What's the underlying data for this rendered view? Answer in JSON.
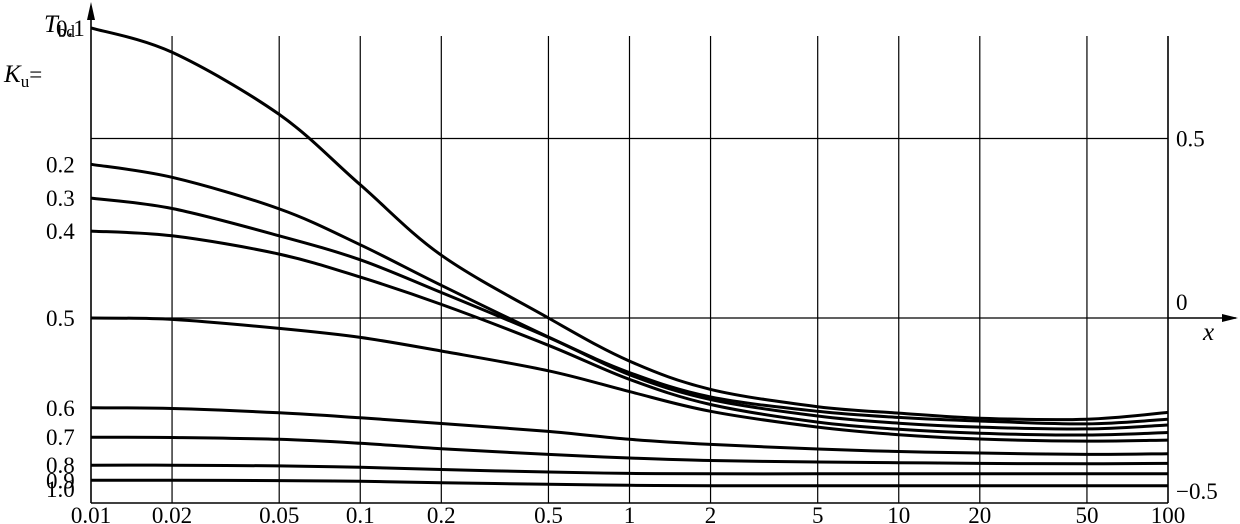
{
  "chart_data": {
    "type": "line",
    "title": "",
    "x_scale": "log",
    "xlim": [
      0.01,
      100
    ],
    "xlabel": "x",
    "ylabel": {
      "symbol": "T",
      "subscript": "bd"
    },
    "grid": true,
    "x_ticks": [
      {
        "value": 0.01,
        "label": "0.01"
      },
      {
        "value": 0.02,
        "label": "0.02"
      },
      {
        "value": 0.05,
        "label": "0.05"
      },
      {
        "value": 0.1,
        "label": "0.1"
      },
      {
        "value": 0.2,
        "label": "0.2"
      },
      {
        "value": 0.5,
        "label": "0.5"
      },
      {
        "value": 1,
        "label": "1"
      },
      {
        "value": 2,
        "label": "2"
      },
      {
        "value": 5,
        "label": "5"
      },
      {
        "value": 10,
        "label": "10"
      },
      {
        "value": 20,
        "label": "20"
      },
      {
        "value": 50,
        "label": "50"
      },
      {
        "value": 100,
        "label": "100"
      }
    ],
    "right_axis": {
      "ylim": [
        -0.5,
        0.5
      ],
      "ticks": [
        {
          "value": 0.5,
          "label": "0.5"
        },
        {
          "value": 0,
          "label": "0"
        },
        {
          "value": -0.5,
          "label": "−0.5"
        }
      ]
    },
    "left_labels": {
      "symbol": "K",
      "subscript": "u",
      "prefix": "=",
      "values": [
        "0.1",
        "0.2",
        "0.3",
        "0.4",
        "0.5",
        "0.6",
        "0.7",
        "0.8",
        "0.9",
        "1.0"
      ]
    },
    "series": [
      {
        "name": "0.1",
        "x": [
          0.01,
          0.02,
          0.05,
          0.1,
          0.2,
          0.5,
          1,
          2,
          5,
          10,
          20,
          50,
          100
        ],
        "y": [
          0.808,
          0.74,
          0.567,
          0.371,
          0.175,
          0.0,
          -0.12,
          -0.199,
          -0.247,
          -0.265,
          -0.279,
          -0.282,
          -0.263
        ]
      },
      {
        "name": "0.2",
        "x": [
          0.01,
          0.02,
          0.05,
          0.1,
          0.2,
          0.5,
          1,
          2,
          5,
          10,
          20,
          50,
          100
        ],
        "y": [
          0.428,
          0.392,
          0.304,
          0.204,
          0.091,
          -0.053,
          -0.152,
          -0.22,
          -0.26,
          -0.277,
          -0.287,
          -0.295,
          -0.282
        ]
      },
      {
        "name": "0.3",
        "x": [
          0.01,
          0.02,
          0.05,
          0.1,
          0.2,
          0.5,
          1,
          2,
          5,
          10,
          20,
          50,
          100
        ],
        "y": [
          0.334,
          0.305,
          0.229,
          0.162,
          0.071,
          -0.054,
          -0.158,
          -0.227,
          -0.273,
          -0.293,
          -0.304,
          -0.309,
          -0.298
        ]
      },
      {
        "name": "0.4",
        "x": [
          0.01,
          0.02,
          0.05,
          0.1,
          0.2,
          0.5,
          1,
          2,
          5,
          10,
          20,
          50,
          100
        ],
        "y": [
          0.242,
          0.229,
          0.178,
          0.114,
          0.038,
          -0.076,
          -0.171,
          -0.241,
          -0.29,
          -0.31,
          -0.321,
          -0.326,
          -0.319
        ]
      },
      {
        "name": "0.5",
        "x": [
          0.01,
          0.02,
          0.05,
          0.1,
          0.2,
          0.5,
          1,
          2,
          5,
          10,
          20,
          50,
          100
        ],
        "y": [
          0.0,
          -0.004,
          -0.029,
          -0.054,
          -0.092,
          -0.147,
          -0.205,
          -0.26,
          -0.304,
          -0.325,
          -0.337,
          -0.343,
          -0.34
        ]
      },
      {
        "name": "0.6",
        "x": [
          0.01,
          0.02,
          0.05,
          0.1,
          0.2,
          0.5,
          1,
          2,
          5,
          10,
          20,
          50,
          100
        ],
        "y": [
          -0.25,
          -0.252,
          -0.264,
          -0.278,
          -0.294,
          -0.316,
          -0.338,
          -0.352,
          -0.365,
          -0.372,
          -0.376,
          -0.38,
          -0.378
        ]
      },
      {
        "name": "0.7",
        "x": [
          0.01,
          0.02,
          0.05,
          0.1,
          0.2,
          0.5,
          1,
          2,
          5,
          10,
          20,
          50,
          100
        ],
        "y": [
          -0.332,
          -0.333,
          -0.338,
          -0.349,
          -0.364,
          -0.38,
          -0.39,
          -0.397,
          -0.401,
          -0.403,
          -0.405,
          -0.406,
          -0.405
        ]
      },
      {
        "name": "0.8",
        "x": [
          0.01,
          0.02,
          0.05,
          0.1,
          0.2,
          0.5,
          1,
          2,
          5,
          10,
          20,
          50,
          100
        ],
        "y": [
          -0.41,
          -0.41,
          -0.412,
          -0.416,
          -0.422,
          -0.429,
          -0.433,
          -0.434,
          -0.434,
          -0.434,
          -0.434,
          -0.434,
          -0.434
        ]
      },
      {
        "name": "0.9",
        "x": [
          0.01,
          0.02,
          0.05,
          0.1,
          0.2,
          0.5,
          1,
          2,
          5,
          10,
          20,
          50,
          100
        ],
        "y": [
          -0.452,
          -0.452,
          -0.453,
          -0.455,
          -0.459,
          -0.463,
          -0.466,
          -0.467,
          -0.467,
          -0.467,
          -0.467,
          -0.467,
          -0.467
        ]
      },
      {
        "name": "1.0",
        "x": [
          0.01,
          0.02,
          0.05,
          0.1,
          0.2,
          0.5,
          1,
          2,
          5,
          10,
          20,
          50,
          100
        ],
        "y": [
          -0.476,
          -0.476,
          -0.477,
          -0.478,
          -0.48,
          -0.484,
          -0.486,
          -0.487,
          -0.487,
          -0.487,
          -0.487,
          -0.487,
          -0.487
        ]
      }
    ]
  }
}
